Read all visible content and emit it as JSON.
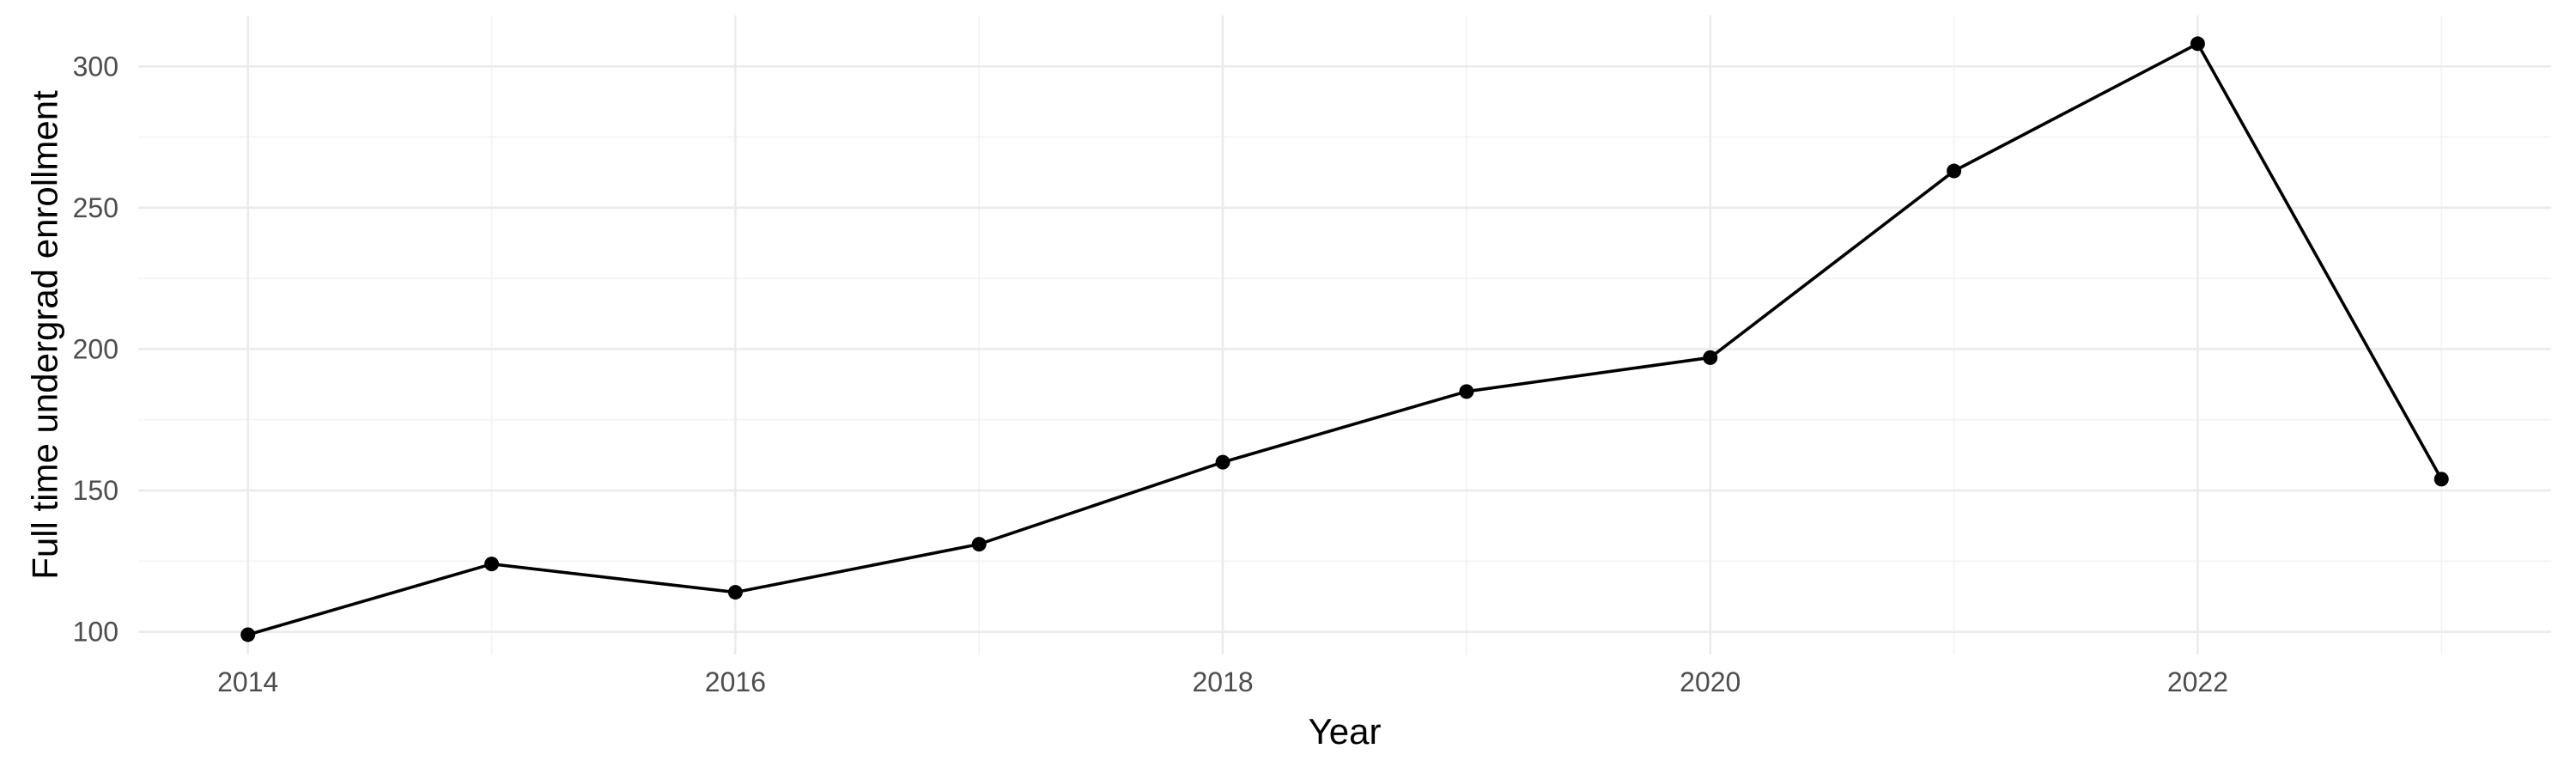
{
  "chart_data": {
    "type": "line",
    "title": "",
    "xlabel": "Year",
    "ylabel": "Full time undergrad enrollment",
    "x": [
      2014,
      2015,
      2016,
      2017,
      2018,
      2019,
      2020,
      2021,
      2022,
      2023
    ],
    "series": [
      {
        "values": [
          99,
          124,
          114,
          131,
          160,
          185,
          197,
          263,
          308,
          154
        ]
      }
    ],
    "xlim": [
      2013.55,
      2023.45
    ],
    "ylim": [
      92,
      318
    ],
    "x_ticks": [
      2014,
      2016,
      2018,
      2020,
      2022
    ],
    "x_minor_ticks": [
      2015,
      2017,
      2019,
      2021,
      2023
    ],
    "y_ticks": [
      100,
      150,
      200,
      250,
      300
    ],
    "y_minor_ticks": [
      125,
      175,
      225,
      275
    ],
    "grid": true,
    "legend": "none",
    "colors": {
      "line": "#000000",
      "grid": "#ebebeb",
      "tick_text": "#4d4d4d"
    }
  }
}
